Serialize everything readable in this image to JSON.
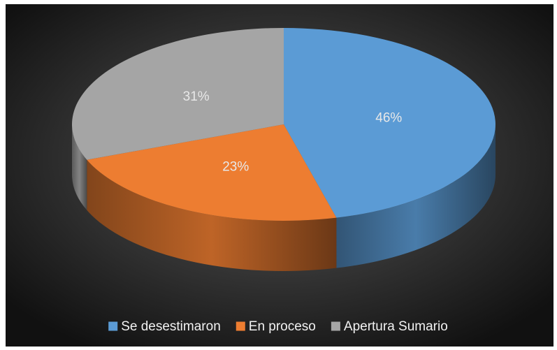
{
  "chart_data": {
    "type": "pie",
    "categories": [
      "Se desestimaron",
      "En proceso",
      "Apertura Sumario"
    ],
    "values": [
      46,
      23,
      31
    ],
    "value_labels": [
      "46%",
      "23%",
      "31%"
    ],
    "colors": [
      "#5b9bd5",
      "#ed7d31",
      "#a5a5a5"
    ],
    "legend": "bottom"
  }
}
